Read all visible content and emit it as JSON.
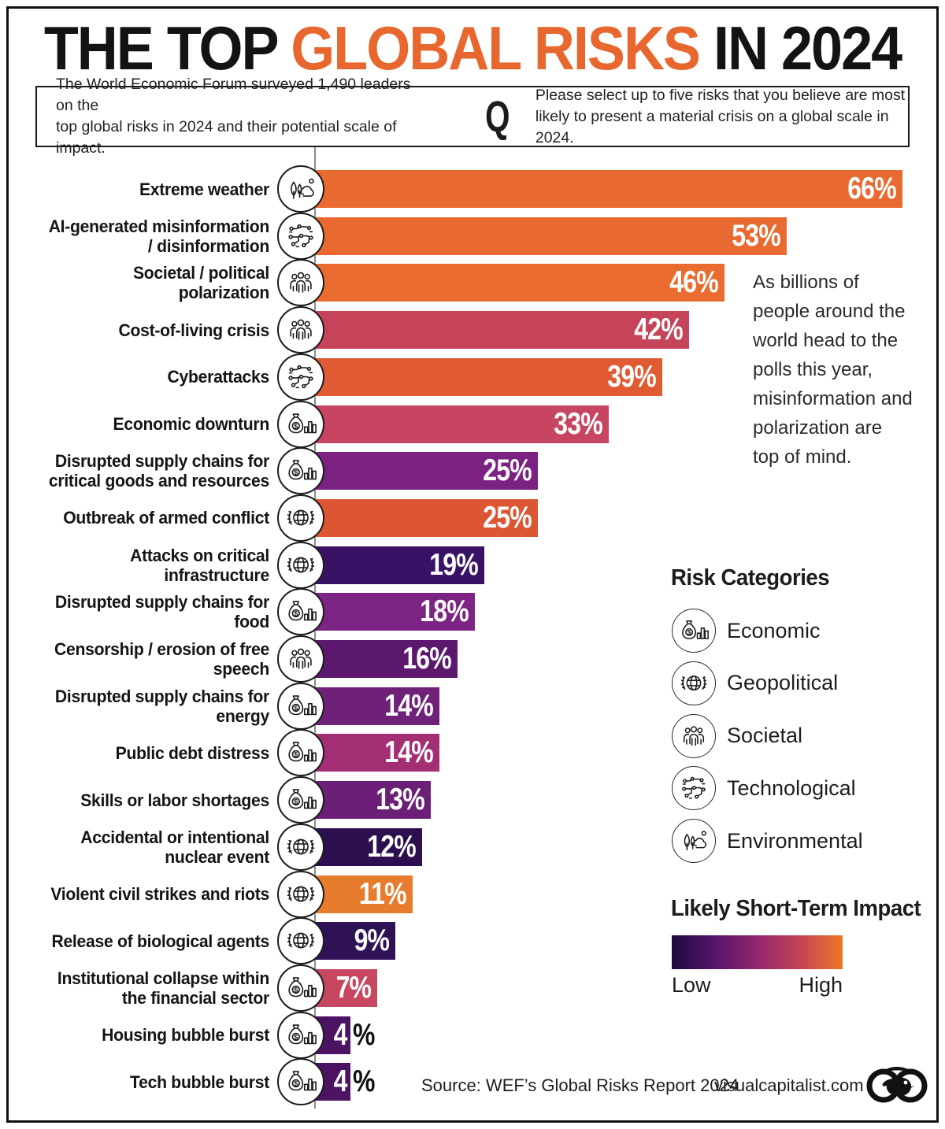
{
  "title": {
    "prefix": "THE TOP ",
    "highlight": "GLOBAL RISKS",
    "suffix": " IN 2024",
    "highlight_color": "#E8672F"
  },
  "intro": {
    "survey_lines": [
      "The World Economic Forum surveyed 1,490 leaders on the",
      "top global risks in 2024 and their potential scale of impact."
    ],
    "q_label": "Q",
    "question_lines": [
      "Please select up to five risks that you believe are most",
      "likely to present a material crisis on a global scale in 2024."
    ]
  },
  "annotation": {
    "lines": [
      "As billions of",
      "people around the",
      "world head to the",
      "polls this year,",
      "misinformation and",
      "polarization are",
      "top of mind."
    ]
  },
  "chart_data": {
    "type": "bar",
    "orientation": "horizontal",
    "unit": "%",
    "xlim": [
      0,
      66
    ],
    "value_suffix": "%",
    "categories": [
      "Extreme weather",
      "AI-generated misinformation / disinformation",
      "Societal / political polarization",
      "Cost-of-living crisis",
      "Cyberattacks",
      "Economic downturn",
      "Disrupted supply chains for critical goods and resources",
      "Outbreak of armed conflict",
      "Attacks on critical infrastructure",
      "Disrupted supply chains for food",
      "Censorship / erosion of free speech",
      "Disrupted supply chains for energy",
      "Public debt distress",
      "Skills or labor shortages",
      "Accidental or intentional nuclear event",
      "Violent civil strikes and riots",
      "Release of biological agents",
      "Institutional collapse within the financial sector",
      "Housing bubble burst",
      "Tech bubble burst"
    ],
    "values": [
      66,
      53,
      46,
      42,
      39,
      33,
      25,
      25,
      19,
      18,
      16,
      14,
      14,
      13,
      12,
      11,
      9,
      7,
      4,
      4
    ],
    "risks": [
      {
        "label_lines": [
          "Extreme weather"
        ],
        "value": 66,
        "color": "#E96A30",
        "category": "environmental"
      },
      {
        "label_lines": [
          "AI-generated misinformation",
          "/ disinformation"
        ],
        "value": 53,
        "color": "#E96A30",
        "category": "technological"
      },
      {
        "label_lines": [
          "Societal / political polarization"
        ],
        "value": 46,
        "color": "#EA6C31",
        "category": "societal"
      },
      {
        "label_lines": [
          "Cost-of-living crisis"
        ],
        "value": 42,
        "color": "#C54459",
        "category": "societal"
      },
      {
        "label_lines": [
          "Cyberattacks"
        ],
        "value": 39,
        "color": "#E05A34",
        "category": "technological"
      },
      {
        "label_lines": [
          "Economic downturn"
        ],
        "value": 33,
        "color": "#C74560",
        "category": "economic"
      },
      {
        "label_lines": [
          "Disrupted supply chains for",
          "critical goods and resources"
        ],
        "value": 25,
        "color": "#7B2181",
        "category": "economic"
      },
      {
        "label_lines": [
          "Outbreak of armed conflict"
        ],
        "value": 25,
        "color": "#DC5634",
        "category": "geopolitical"
      },
      {
        "label_lines": [
          "Attacks on critical infrastructure"
        ],
        "value": 19,
        "color": "#3A1265",
        "category": "geopolitical"
      },
      {
        "label_lines": [
          "Disrupted supply chains for food"
        ],
        "value": 18,
        "color": "#7C2483",
        "category": "economic"
      },
      {
        "label_lines": [
          "Censorship / erosion of free speech"
        ],
        "value": 16,
        "color": "#5C186D",
        "category": "societal"
      },
      {
        "label_lines": [
          "Disrupted supply chains for energy"
        ],
        "value": 14,
        "color": "#6F2079",
        "category": "economic"
      },
      {
        "label_lines": [
          "Public debt distress"
        ],
        "value": 14,
        "color": "#A42E74",
        "category": "economic"
      },
      {
        "label_lines": [
          "Skills or labor shortages"
        ],
        "value": 13,
        "color": "#6C1F77",
        "category": "economic"
      },
      {
        "label_lines": [
          "Accidental or intentional",
          "nuclear event"
        ],
        "value": 12,
        "color": "#2B0F4F",
        "category": "geopolitical"
      },
      {
        "label_lines": [
          "Violent civil strikes and riots"
        ],
        "value": 11,
        "color": "#E87C2D",
        "category": "geopolitical"
      },
      {
        "label_lines": [
          "Release of biological agents"
        ],
        "value": 9,
        "color": "#2F1156",
        "category": "geopolitical"
      },
      {
        "label_lines": [
          "Institutional collapse within",
          "the financial sector"
        ],
        "value": 7,
        "color": "#C84760",
        "category": "economic"
      },
      {
        "label_lines": [
          "Housing bubble burst"
        ],
        "value": 4,
        "color": "#4C1363",
        "category": "economic"
      },
      {
        "label_lines": [
          "Tech bubble burst"
        ],
        "value": 4,
        "color": "#4C1363",
        "category": "economic"
      }
    ]
  },
  "legend": {
    "title": "Risk Categories",
    "items": [
      {
        "label": "Economic",
        "icon": "economic-icon",
        "category": "economic"
      },
      {
        "label": "Geopolitical",
        "icon": "geopolitical-icon",
        "category": "geopolitical"
      },
      {
        "label": "Societal",
        "icon": "societal-icon",
        "category": "societal"
      },
      {
        "label": "Technological",
        "icon": "technological-icon",
        "category": "technological"
      },
      {
        "label": "Environmental",
        "icon": "environmental-icon",
        "category": "environmental"
      }
    ]
  },
  "impact_scale": {
    "title": "Likely Short-Term Impact",
    "low_label": "Low",
    "high_label": "High",
    "gradient": [
      "#1D0A3E",
      "#55156B",
      "#92266F",
      "#C44355",
      "#EE7623"
    ]
  },
  "footer": {
    "source": "Source: WEF’s Global Risks Report 2024",
    "site": "visualcapitalist.com"
  }
}
